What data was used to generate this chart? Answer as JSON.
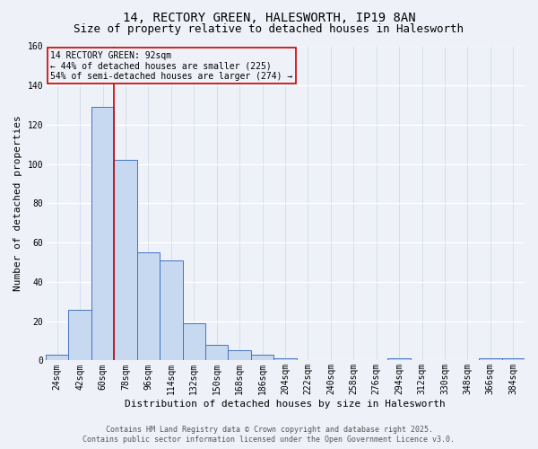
{
  "title_line1": "14, RECTORY GREEN, HALESWORTH, IP19 8AN",
  "title_line2": "Size of property relative to detached houses in Halesworth",
  "xlabel": "Distribution of detached houses by size in Halesworth",
  "ylabel": "Number of detached properties",
  "categories": [
    "24sqm",
    "42sqm",
    "60sqm",
    "78sqm",
    "96sqm",
    "114sqm",
    "132sqm",
    "150sqm",
    "168sqm",
    "186sqm",
    "204sqm",
    "222sqm",
    "240sqm",
    "258sqm",
    "276sqm",
    "294sqm",
    "312sqm",
    "330sqm",
    "348sqm",
    "366sqm",
    "384sqm"
  ],
  "bar_values": [
    3,
    26,
    129,
    102,
    55,
    51,
    19,
    8,
    5,
    3,
    1,
    0,
    0,
    0,
    0,
    1,
    0,
    0,
    0,
    1,
    1
  ],
  "bar_color": "#c6d9f0",
  "bar_edge_color": "#4472c4",
  "vline_x": 2.5,
  "vline_color": "#cc0000",
  "annotation_text": "14 RECTORY GREEN: 92sqm\n← 44% of detached houses are smaller (225)\n54% of semi-detached houses are larger (274) →",
  "annotation_box_color": "#cc0000",
  "ylim": [
    0,
    160
  ],
  "yticks": [
    0,
    20,
    40,
    60,
    80,
    100,
    120,
    140,
    160
  ],
  "footer_line1": "Contains HM Land Registry data © Crown copyright and database right 2025.",
  "footer_line2": "Contains public sector information licensed under the Open Government Licence v3.0.",
  "bg_color": "#eef2f8",
  "grid_color": "#d8e0ec",
  "title_fontsize": 10,
  "subtitle_fontsize": 9,
  "axis_label_fontsize": 8,
  "tick_fontsize": 7
}
